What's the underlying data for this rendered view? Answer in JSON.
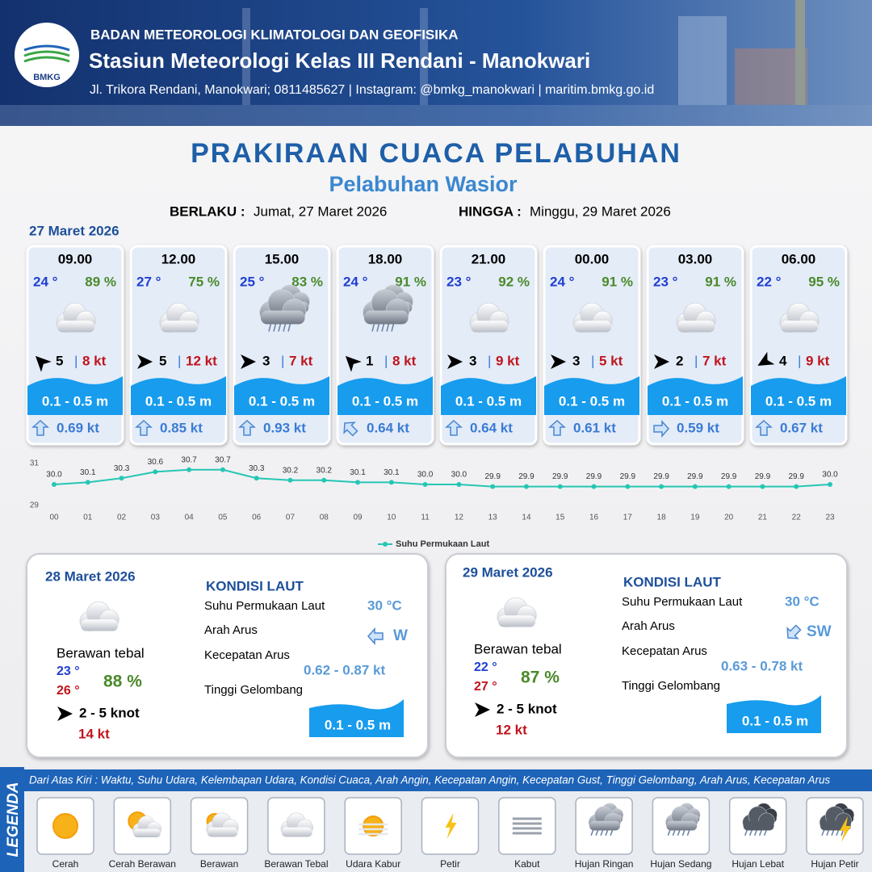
{
  "header": {
    "logo": "BMKG",
    "org": "BADAN METEOROLOGI KLIMATOLOGI DAN GEOFISIKA",
    "station": "Stasiun Meteorologi Kelas III Rendani - Manokwari",
    "address": "Jl. Trikora Rendani, Manokwari; 0811485627 | Instagram: @bmkg_manokwari | maritim.bmkg.go.id"
  },
  "title": "PRAKIRAAN CUACA PELABUHAN",
  "subtitle": "Pelabuhan Wasior",
  "validity": {
    "from_label": "BERLAKU :",
    "from": "Jumat, 27 Maret 2026",
    "to_label": "HINGGA :",
    "to": "Minggu, 29 Maret 2026"
  },
  "day1_date": "27 Maret 2026",
  "slots": [
    {
      "time": "09.00",
      "temp": "24 °",
      "humidity": "89 %",
      "wind": "5",
      "gust": "8 kt",
      "wave": "0.1 - 0.5 m",
      "current": "0.69 kt"
    },
    {
      "time": "12.00",
      "temp": "27 °",
      "humidity": "75 %",
      "wind": "5",
      "gust": "12 kt",
      "wave": "0.1 - 0.5 m",
      "current": "0.85 kt"
    },
    {
      "time": "15.00",
      "temp": "25 °",
      "humidity": "83 %",
      "wind": "3",
      "gust": "7 kt",
      "wave": "0.1 - 0.5 m",
      "current": "0.93 kt"
    },
    {
      "time": "18.00",
      "temp": "24 °",
      "humidity": "91 %",
      "wind": "1",
      "gust": "8 kt",
      "wave": "0.1 - 0.5 m",
      "current": "0.64 kt"
    },
    {
      "time": "21.00",
      "temp": "23 °",
      "humidity": "92 %",
      "wind": "3",
      "gust": "9 kt",
      "wave": "0.1 - 0.5 m",
      "current": "0.64 kt"
    },
    {
      "time": "00.00",
      "temp": "24 °",
      "humidity": "91 %",
      "wind": "3",
      "gust": "5 kt",
      "wave": "0.1 - 0.5 m",
      "current": "0.61 kt"
    },
    {
      "time": "03.00",
      "temp": "23 °",
      "humidity": "91 %",
      "wind": "2",
      "gust": "7 kt",
      "wave": "0.1 - 0.5 m",
      "current": "0.59 kt"
    },
    {
      "time": "06.00",
      "temp": "22 °",
      "humidity": "95 %",
      "wind": "4",
      "gust": "9 kt",
      "wave": "0.1 - 0.5 m",
      "current": "0.67 kt"
    }
  ],
  "chart_data": {
    "type": "line",
    "categories": [
      "00",
      "01",
      "02",
      "03",
      "04",
      "05",
      "06",
      "07",
      "08",
      "09",
      "10",
      "11",
      "12",
      "13",
      "14",
      "15",
      "16",
      "17",
      "18",
      "19",
      "20",
      "21",
      "22",
      "23"
    ],
    "series": [
      {
        "name": "Suhu Permukaan Laut",
        "color": "#26c6b4",
        "values": [
          30.0,
          30.1,
          30.3,
          30.6,
          30.7,
          30.7,
          30.3,
          30.2,
          30.2,
          30.1,
          30.1,
          30.0,
          30.0,
          29.9,
          29.9,
          29.9,
          29.9,
          29.9,
          29.9,
          29.9,
          29.9,
          29.9,
          29.9,
          30.0
        ],
        "value_labels": [
          "30.0",
          "30.1",
          "30.3",
          "30.6",
          "30.7",
          "30.7",
          "30.3",
          "30.2",
          "30.2",
          "30.1",
          "30.1",
          "30.0",
          "30.0",
          "29.9",
          "29.9",
          "29.9",
          "29.9",
          "29.9",
          "29.9",
          "29.9",
          "29.9",
          "29.9",
          "29.9",
          "30.0"
        ]
      }
    ],
    "ylim": [
      29,
      31
    ],
    "yticks": [
      29,
      31
    ],
    "legend": "bottom"
  },
  "days": [
    {
      "date": "28 Maret 2026",
      "weather": "Berawan tebal",
      "temp_min": "23 °",
      "temp_max": "26 °",
      "humidity": "88 %",
      "wind": "2  - 5 knot",
      "gust": "14 kt",
      "heading": "KONDISI LAUT",
      "sst_label": "Suhu Permukaan Laut",
      "sst": "30 °C",
      "dir_label": "Arah Arus",
      "dir": "W",
      "speed_label": "Kecepatan Arus",
      "speed": "0.62  - 0.87 kt",
      "wave_label": "Tinggi Gelombang",
      "wave": "0.1 - 0.5 m"
    },
    {
      "date": "29 Maret 2026",
      "weather": "Berawan tebal",
      "temp_min": "22 °",
      "temp_max": "27 °",
      "humidity": "87 %",
      "wind": "2  - 5 knot",
      "gust": "12 kt",
      "heading": "KONDISI LAUT",
      "sst_label": "Suhu Permukaan Laut",
      "sst": "30 °C",
      "dir_label": "Arah Arus",
      "dir": "SW",
      "speed_label": "Kecepatan Arus",
      "speed": "0.63  - 0.78 kt",
      "wave_label": "Tinggi Gelombang",
      "wave": "0.1 - 0.5 m"
    }
  ],
  "legend": {
    "title": "LEGENDA",
    "description": "Dari Atas Kiri : Waktu, Suhu Udara, Kelembapan Udara, Kondisi Cuaca, Arah Angin, Kecepatan Angin, Kecepatan Gust, Tinggi Gelombang, Arah Arus, Kecepatan Arus",
    "items": [
      "Cerah",
      "Cerah Berawan",
      "Berawan",
      "Berawan Tebal",
      "Udara Kabur",
      "Petir",
      "Kabut",
      "Hujan Ringan",
      "Hujan Sedang",
      "Hujan Lebat",
      "Hujan Petir"
    ]
  }
}
